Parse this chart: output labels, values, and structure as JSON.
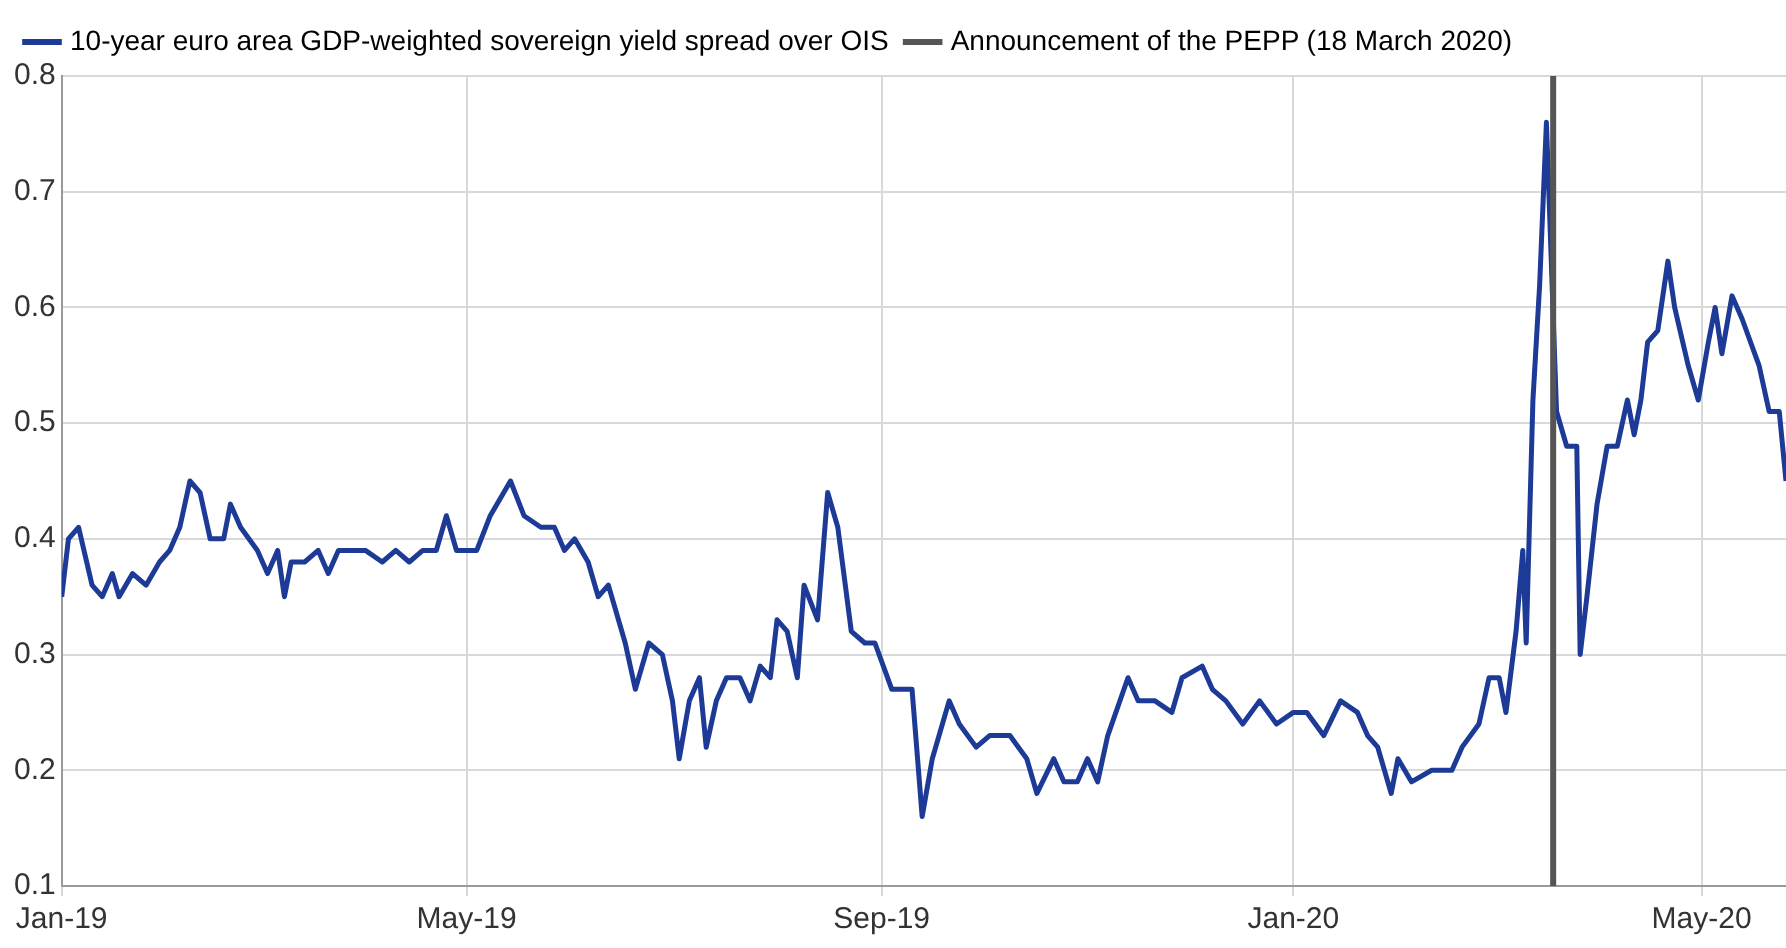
{
  "chart_data": {
    "type": "line",
    "x": [
      "2019-01-01",
      "2019-01-03",
      "2019-01-06",
      "2019-01-10",
      "2019-01-13",
      "2019-01-16",
      "2019-01-18",
      "2019-01-22",
      "2019-01-26",
      "2019-01-30",
      "2019-02-02",
      "2019-02-05",
      "2019-02-08",
      "2019-02-11",
      "2019-02-14",
      "2019-02-18",
      "2019-02-20",
      "2019-02-23",
      "2019-02-28",
      "2019-03-03",
      "2019-03-06",
      "2019-03-08",
      "2019-03-10",
      "2019-03-14",
      "2019-03-18",
      "2019-03-21",
      "2019-03-24",
      "2019-03-28",
      "2019-04-01",
      "2019-04-06",
      "2019-04-10",
      "2019-04-14",
      "2019-04-18",
      "2019-04-22",
      "2019-04-25",
      "2019-04-28",
      "2019-05-04",
      "2019-05-08",
      "2019-05-14",
      "2019-05-18",
      "2019-05-23",
      "2019-05-27",
      "2019-05-30",
      "2019-06-02",
      "2019-06-06",
      "2019-06-09",
      "2019-06-12",
      "2019-06-17",
      "2019-06-20",
      "2019-06-24",
      "2019-06-28",
      "2019-07-01",
      "2019-07-03",
      "2019-07-06",
      "2019-07-09",
      "2019-07-11",
      "2019-07-14",
      "2019-07-17",
      "2019-07-21",
      "2019-07-24",
      "2019-07-27",
      "2019-07-30",
      "2019-08-01",
      "2019-08-04",
      "2019-08-07",
      "2019-08-09",
      "2019-08-13",
      "2019-08-16",
      "2019-08-19",
      "2019-08-23",
      "2019-08-27",
      "2019-08-30",
      "2019-09-04",
      "2019-09-10",
      "2019-09-13",
      "2019-09-16",
      "2019-09-21",
      "2019-09-24",
      "2019-09-29",
      "2019-10-03",
      "2019-10-09",
      "2019-10-14",
      "2019-10-17",
      "2019-10-22",
      "2019-10-25",
      "2019-10-29",
      "2019-11-01",
      "2019-11-04",
      "2019-11-07",
      "2019-11-13",
      "2019-11-16",
      "2019-11-21",
      "2019-11-26",
      "2019-11-29",
      "2019-12-05",
      "2019-12-08",
      "2019-12-12",
      "2019-12-17",
      "2019-12-22",
      "2019-12-27",
      "2020-01-01",
      "2020-01-05",
      "2020-01-10",
      "2020-01-15",
      "2020-01-20",
      "2020-01-23",
      "2020-01-26",
      "2020-01-30",
      "2020-02-01",
      "2020-02-05",
      "2020-02-11",
      "2020-02-17",
      "2020-02-20",
      "2020-02-25",
      "2020-02-28",
      "2020-03-02",
      "2020-03-04",
      "2020-03-07",
      "2020-03-09",
      "2020-03-10",
      "2020-03-12",
      "2020-03-14",
      "2020-03-16",
      "2020-03-19",
      "2020-03-22",
      "2020-03-25",
      "2020-03-26",
      "2020-03-28",
      "2020-03-31",
      "2020-04-03",
      "2020-04-06",
      "2020-04-09",
      "2020-04-11",
      "2020-04-13",
      "2020-04-15",
      "2020-04-18",
      "2020-04-21",
      "2020-04-23",
      "2020-04-27",
      "2020-04-30",
      "2020-05-03",
      "2020-05-05",
      "2020-05-07",
      "2020-05-10",
      "2020-05-13",
      "2020-05-18",
      "2020-05-21",
      "2020-05-24",
      "2020-05-26"
    ],
    "series": [
      {
        "name": "10-year euro area GDP-weighted sovereign yield spread over OIS",
        "color": "#1c3a96",
        "values": [
          0.35,
          0.4,
          0.41,
          0.36,
          0.35,
          0.37,
          0.35,
          0.37,
          0.36,
          0.38,
          0.39,
          0.41,
          0.45,
          0.44,
          0.4,
          0.4,
          0.43,
          0.41,
          0.39,
          0.37,
          0.39,
          0.35,
          0.38,
          0.38,
          0.39,
          0.37,
          0.39,
          0.39,
          0.39,
          0.38,
          0.39,
          0.38,
          0.39,
          0.39,
          0.42,
          0.39,
          0.39,
          0.42,
          0.45,
          0.42,
          0.41,
          0.41,
          0.39,
          0.4,
          0.38,
          0.35,
          0.36,
          0.31,
          0.27,
          0.31,
          0.3,
          0.26,
          0.21,
          0.26,
          0.28,
          0.22,
          0.26,
          0.28,
          0.28,
          0.26,
          0.29,
          0.28,
          0.33,
          0.32,
          0.28,
          0.36,
          0.33,
          0.44,
          0.41,
          0.32,
          0.31,
          0.31,
          0.27,
          0.27,
          0.16,
          0.21,
          0.26,
          0.24,
          0.22,
          0.23,
          0.23,
          0.21,
          0.18,
          0.21,
          0.19,
          0.19,
          0.21,
          0.19,
          0.23,
          0.28,
          0.26,
          0.26,
          0.25,
          0.28,
          0.29,
          0.27,
          0.26,
          0.24,
          0.26,
          0.24,
          0.25,
          0.25,
          0.23,
          0.26,
          0.25,
          0.23,
          0.22,
          0.18,
          0.21,
          0.19,
          0.2,
          0.2,
          0.22,
          0.24,
          0.28,
          0.28,
          0.25,
          0.32,
          0.39,
          0.31,
          0.52,
          0.62,
          0.76,
          0.51,
          0.48,
          0.48,
          0.3,
          0.35,
          0.43,
          0.48,
          0.48,
          0.52,
          0.49,
          0.52,
          0.57,
          0.58,
          0.64,
          0.6,
          0.55,
          0.52,
          0.57,
          0.6,
          0.56,
          0.61,
          0.59,
          0.55,
          0.51,
          0.51,
          0.45
        ]
      }
    ],
    "xlim": [
      "2019-01-01",
      "2020-05-26"
    ],
    "xticks": [
      {
        "value": "2019-01-01",
        "label": "Jan-19"
      },
      {
        "value": "2019-05-01",
        "label": "May-19"
      },
      {
        "value": "2019-09-01",
        "label": "Sep-19"
      },
      {
        "value": "2020-01-01",
        "label": "Jan-20"
      },
      {
        "value": "2020-05-01",
        "label": "May-20"
      }
    ],
    "ylim": [
      0.1,
      0.8
    ],
    "yticks": [
      0.1,
      0.2,
      0.3,
      0.4,
      0.5,
      0.6,
      0.7,
      0.8
    ],
    "ref_lines": [
      {
        "axis": "x",
        "value": "2020-03-18",
        "label": "Announcement of the PEPP (18 March 2020)",
        "color": "#555555"
      }
    ],
    "grid": true,
    "legend": "top",
    "marker": "none",
    "line_style": "solid"
  }
}
